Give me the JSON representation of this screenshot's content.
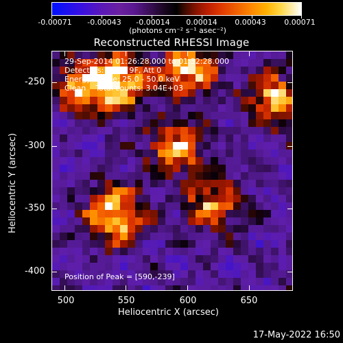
{
  "colorbar": {
    "tick_labels": [
      "-0.00071",
      "-0.00043",
      "-0.00014",
      "0.00014",
      "0.00043",
      "0.00071"
    ],
    "units": "(photons cm⁻² s⁻¹ asec⁻²)"
  },
  "title": "Reconstructed RHESSI Image",
  "annotations": {
    "time_range": "29-Sep-2014 01:26:28.000 to 01:32:28.000",
    "detectors": "Detectors: 3F 6F 9F, Att 0",
    "energy": "Energy Range: 25.0 - 50.0 keV",
    "method": "Clean    Total counts: 3.04E+03",
    "peak": "Position of Peak = [590,-239]"
  },
  "axes": {
    "xlabel": "Heliocentric X (arcsec)",
    "ylabel": "Heliocentric Y (arcsec)",
    "xticks": [
      "500",
      "550",
      "600",
      "650"
    ],
    "yticks": [
      "-250",
      "-300",
      "-350",
      "-400"
    ]
  },
  "timestamp": "17-May-2022 16:50",
  "chart_data": {
    "type": "heatmap",
    "title": "Reconstructed RHESSI Image",
    "xlabel": "Heliocentric X (arcsec)",
    "ylabel": "Heliocentric Y (arcsec)",
    "xlim": [
      490,
      686
    ],
    "ylim": [
      -416,
      -222
    ],
    "colorbar_range": [
      -0.00071,
      0.00071
    ],
    "colormap": "blue-purple-black-red-orange-yellow-white",
    "peak_position": [
      590,
      -239
    ],
    "bright_regions": [
      {
        "x": 545,
        "y": -245,
        "level": "high"
      },
      {
        "x": 600,
        "y": -235,
        "level": "high"
      },
      {
        "x": 540,
        "y": -355,
        "level": "high"
      },
      {
        "x": 620,
        "y": -345,
        "level": "medium"
      },
      {
        "x": 670,
        "y": -260,
        "level": "medium"
      },
      {
        "x": 515,
        "y": -250,
        "level": "medium"
      },
      {
        "x": 590,
        "y": -300,
        "level": "medium"
      }
    ]
  }
}
